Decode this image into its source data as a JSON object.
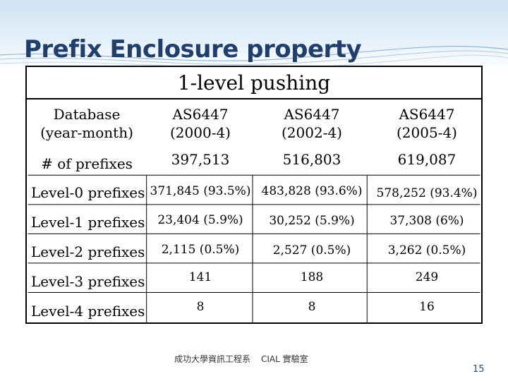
{
  "slide": {
    "title": "Prefix Enclosure property",
    "page_number": "15",
    "footer_left": "成功大學資訊工程系",
    "footer_right": "CIAL 實驗室"
  },
  "table": {
    "caption": "1-level pushing",
    "header_label_line1": "Database",
    "header_label_line2": "(year-month)",
    "columns": [
      {
        "line1": "AS6447",
        "line2": "(2000-4)"
      },
      {
        "line1": "AS6447",
        "line2": "(2002-4)"
      },
      {
        "line1": "AS6447",
        "line2": "(2005-4)"
      }
    ],
    "rows": [
      {
        "label": "# of prefixes",
        "values": [
          "397,513",
          "516,803",
          "619,087"
        ]
      },
      {
        "label": "Level-0 prefixes",
        "values": [
          "371,845 (93.5%)",
          "483,828 (93.6%)",
          "578,252 (93.4%)"
        ]
      },
      {
        "label": "Level-1 prefixes",
        "values": [
          "23,404 (5.9%)",
          "30,252 (5.9%)",
          "37,308 (6%)"
        ]
      },
      {
        "label": "Level-2 prefixes",
        "values": [
          "2,115 (0.5%)",
          "2,527 (0.5%)",
          "3,262 (0.5%)"
        ]
      },
      {
        "label": "Level-3 prefixes",
        "values": [
          "141",
          "188",
          "249"
        ]
      },
      {
        "label": "Level-4 prefixes",
        "values": [
          "8",
          "8",
          "16"
        ]
      }
    ]
  }
}
